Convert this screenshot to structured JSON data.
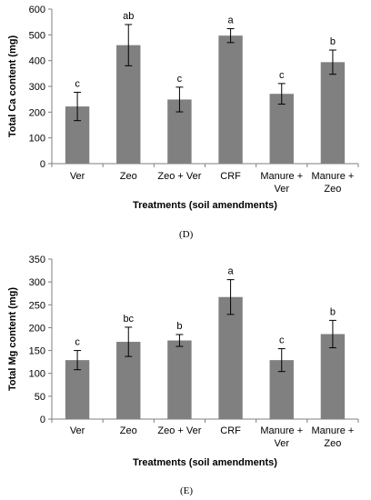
{
  "chart_data": [
    {
      "type": "bar",
      "panel_label": "(D)",
      "categories": [
        [
          "Ver"
        ],
        [
          "Zeo"
        ],
        [
          "Zeo + Ver"
        ],
        [
          "CRF"
        ],
        [
          "Manure +",
          "Ver"
        ],
        [
          "Manure +",
          "Zeo"
        ]
      ],
      "values": [
        222,
        460,
        249,
        497,
        271,
        394
      ],
      "errors": [
        55,
        80,
        48,
        27,
        40,
        47
      ],
      "significance": [
        "c",
        "ab",
        "c",
        "a",
        "c",
        "b"
      ],
      "xlabel": "Treatments (soil amendments)",
      "ylabel": "Total Ca content (mg)",
      "ylim": [
        0,
        600
      ],
      "yticks": [
        0,
        100,
        200,
        300,
        400,
        500,
        600
      ],
      "bar_color": "#808080",
      "grid": false
    },
    {
      "type": "bar",
      "panel_label": "(E)",
      "categories": [
        [
          "Ver"
        ],
        [
          "Zeo"
        ],
        [
          "Zeo + Ver"
        ],
        [
          "CRF"
        ],
        [
          "Manure +",
          "Ver"
        ],
        [
          "Manure +",
          "Zeo"
        ]
      ],
      "values": [
        129,
        169,
        172,
        267,
        129,
        186
      ],
      "errors": [
        21,
        32,
        13,
        38,
        25,
        30
      ],
      "significance": [
        "c",
        "bc",
        "b",
        "a",
        "c",
        "b"
      ],
      "xlabel": "Treatments (soil amendments)",
      "ylabel": "Total Mg content (mg)",
      "ylim": [
        0,
        350
      ],
      "yticks": [
        0,
        50,
        100,
        150,
        200,
        250,
        300,
        350
      ],
      "bar_color": "#808080",
      "grid": false
    }
  ]
}
